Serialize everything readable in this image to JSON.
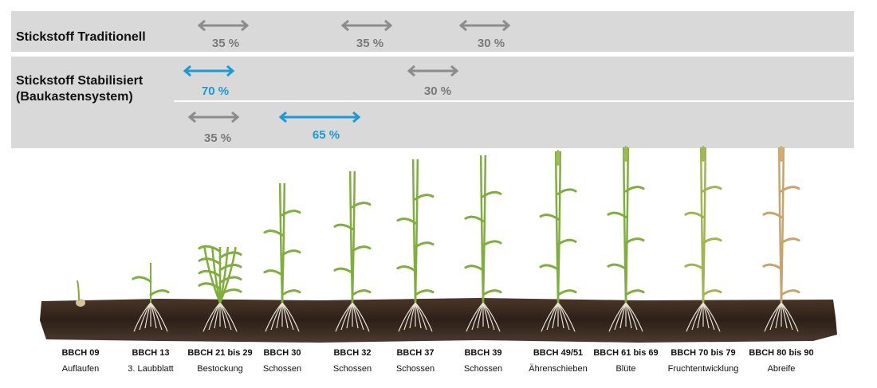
{
  "colors": {
    "gray_arrow": "#8c8c8c",
    "blue_arrow": "#1a9ad6",
    "soil": "#3b2a1f",
    "band": "#d9d9d9"
  },
  "rows": {
    "traditional": {
      "label": "Stickstoff Traditionell"
    },
    "stabilized": {
      "label_line1": "Stickstoff Stabilisiert",
      "label_line2": "(Baukastensystem)"
    }
  },
  "arrows": {
    "t1": {
      "label": "35 %",
      "color": "gray"
    },
    "t2": {
      "label": "35 %",
      "color": "gray"
    },
    "t3": {
      "label": "30 %",
      "color": "gray"
    },
    "s1": {
      "label": "70 %",
      "color": "blue"
    },
    "s2": {
      "label": "30 %",
      "color": "gray"
    },
    "s3": {
      "label": "35 %",
      "color": "gray"
    },
    "s4": {
      "label": "65 %",
      "color": "blue"
    }
  },
  "stages": [
    {
      "code": "BBCH 09",
      "name": "Auflaufen"
    },
    {
      "code": "BBCH 13",
      "name": "3. Laubblatt"
    },
    {
      "code": "BBCH 21 bis 29",
      "name": "Bestockung"
    },
    {
      "code": "BBCH 30",
      "name": "Schossen"
    },
    {
      "code": "BBCH 32",
      "name": "Schossen"
    },
    {
      "code": "BBCH 37",
      "name": "Schossen"
    },
    {
      "code": "BBCH 39",
      "name": "Schossen"
    },
    {
      "code": "BBCH 49/51",
      "name": "Ährenschieben"
    },
    {
      "code": "BBCH 61 bis 69",
      "name": "Blüte"
    },
    {
      "code": "BBCH 70 bis 79",
      "name": "Fruchtentwicklung"
    },
    {
      "code": "BBCH 80 bis 90",
      "name": "Abreife"
    }
  ]
}
